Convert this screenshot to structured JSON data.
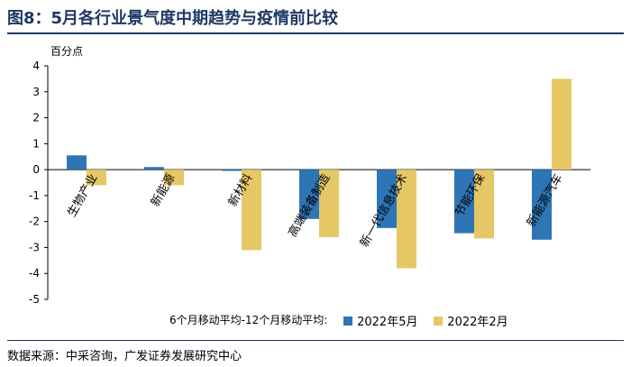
{
  "figure_title": "图8：5月各行业景气度中期趋势与疫情前比较",
  "source_note": "数据来源：中采咨询，广发证券发展研究中心",
  "legend_prefix": "6个月移动平均-12个月移动平均:",
  "colors": {
    "series_may": "#2e75b6",
    "series_feb": "#e6c765",
    "title": "#1f3864"
  },
  "chart_data": {
    "type": "bar",
    "ylabel": "百分点",
    "ylim": [
      -5,
      4
    ],
    "yticks": [
      4,
      3,
      2,
      1,
      0,
      -1,
      -2,
      -3,
      -4,
      -5
    ],
    "grid": false,
    "legend_position": "bottom",
    "categories": [
      "生物产业",
      "新能源",
      "新材料",
      "高端装备制造",
      "新一代信息技术",
      "节能环保",
      "新能源汽车"
    ],
    "series": [
      {
        "name": "2022年5月",
        "values": [
          0.55,
          0.1,
          -0.05,
          -1.9,
          -2.25,
          -2.45,
          -2.7
        ]
      },
      {
        "name": "2022年2月",
        "values": [
          -0.6,
          -0.6,
          -3.1,
          -2.6,
          -3.8,
          -2.65,
          3.5
        ]
      }
    ]
  }
}
